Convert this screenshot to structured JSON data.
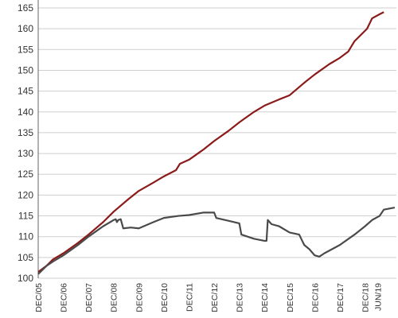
{
  "chart_data": {
    "type": "line",
    "title": "",
    "xlabel": "",
    "ylabel": "",
    "ylim": [
      100,
      165
    ],
    "grid": true,
    "legend": "none",
    "y_ticks": [
      "100",
      "105",
      "110",
      "115",
      "120",
      "125",
      "130",
      "135",
      "140",
      "145",
      "150",
      "155",
      "160",
      "165"
    ],
    "x_ticks": [
      {
        "label": "DEC/05",
        "x": 2005.917
      },
      {
        "label": "DEC/06",
        "x": 2006.917
      },
      {
        "label": "DEC/07",
        "x": 2007.917
      },
      {
        "label": "DEC/08",
        "x": 2008.917
      },
      {
        "label": "DEC/09",
        "x": 2009.917
      },
      {
        "label": "DEC/10",
        "x": 2010.917
      },
      {
        "label": "DEC/11",
        "x": 2011.917
      },
      {
        "label": "DEC/12",
        "x": 2012.917
      },
      {
        "label": "DEC/13",
        "x": 2013.917
      },
      {
        "label": "DEC/14",
        "x": 2014.917
      },
      {
        "label": "DEC/15",
        "x": 2015.917
      },
      {
        "label": "DEC/16",
        "x": 2016.917
      },
      {
        "label": "DEC/17",
        "x": 2017.917
      },
      {
        "label": "DEC/18",
        "x": 2018.917
      },
      {
        "label": "JUN/19",
        "x": 2019.417
      }
    ],
    "xlim": [
      2005.917,
      2020.167
    ],
    "series": [
      {
        "color": "#8b1a1a",
        "points": [
          [
            2005.917,
            101.5
          ],
          [
            2006.25,
            103.0
          ],
          [
            2006.5,
            104.5
          ],
          [
            2006.917,
            106.0
          ],
          [
            2007.5,
            108.5
          ],
          [
            2007.917,
            110.5
          ],
          [
            2008.5,
            113.5
          ],
          [
            2008.917,
            116.0
          ],
          [
            2009.5,
            119.0
          ],
          [
            2009.917,
            121.0
          ],
          [
            2010.5,
            123.0
          ],
          [
            2010.917,
            124.5
          ],
          [
            2011.4,
            126.0
          ],
          [
            2011.55,
            127.5
          ],
          [
            2011.917,
            128.5
          ],
          [
            2012.5,
            131.0
          ],
          [
            2012.917,
            133.0
          ],
          [
            2013.5,
            135.5
          ],
          [
            2013.917,
            137.5
          ],
          [
            2014.5,
            140.0
          ],
          [
            2014.917,
            141.5
          ],
          [
            2015.5,
            143.0
          ],
          [
            2015.917,
            144.0
          ],
          [
            2016.5,
            147.0
          ],
          [
            2016.917,
            149.0
          ],
          [
            2017.5,
            151.5
          ],
          [
            2017.917,
            153.0
          ],
          [
            2018.25,
            154.5
          ],
          [
            2018.5,
            157.0
          ],
          [
            2018.917,
            159.5
          ],
          [
            2019.0,
            160.0
          ],
          [
            2019.2,
            162.5
          ],
          [
            2019.5,
            163.5
          ],
          [
            2019.667,
            164.0
          ]
        ]
      },
      {
        "color": "#4a4a4a",
        "points": [
          [
            2005.917,
            101.0
          ],
          [
            2006.25,
            103.0
          ],
          [
            2006.5,
            104.0
          ],
          [
            2006.917,
            105.5
          ],
          [
            2007.5,
            108.0
          ],
          [
            2007.917,
            110.0
          ],
          [
            2008.5,
            112.5
          ],
          [
            2008.917,
            114.0
          ],
          [
            2009.0,
            114.2
          ],
          [
            2009.05,
            113.5
          ],
          [
            2009.1,
            114.0
          ],
          [
            2009.2,
            114.2
          ],
          [
            2009.3,
            112.0
          ],
          [
            2009.6,
            112.2
          ],
          [
            2009.917,
            112.0
          ],
          [
            2010.5,
            113.5
          ],
          [
            2010.917,
            114.5
          ],
          [
            2011.5,
            115.0
          ],
          [
            2011.917,
            115.2
          ],
          [
            2012.5,
            115.8
          ],
          [
            2012.917,
            115.8
          ],
          [
            2013.0,
            114.5
          ],
          [
            2013.5,
            113.8
          ],
          [
            2013.917,
            113.2
          ],
          [
            2014.0,
            110.5
          ],
          [
            2014.5,
            109.5
          ],
          [
            2014.917,
            109.0
          ],
          [
            2015.0,
            109.0
          ],
          [
            2015.05,
            114.0
          ],
          [
            2015.2,
            113.0
          ],
          [
            2015.5,
            112.5
          ],
          [
            2015.917,
            111.0
          ],
          [
            2016.3,
            110.5
          ],
          [
            2016.5,
            108.0
          ],
          [
            2016.7,
            107.0
          ],
          [
            2016.917,
            105.5
          ],
          [
            2017.1,
            105.2
          ],
          [
            2017.3,
            106.0
          ],
          [
            2017.917,
            108.0
          ],
          [
            2018.5,
            110.5
          ],
          [
            2018.917,
            112.5
          ],
          [
            2019.2,
            114.0
          ],
          [
            2019.5,
            115.0
          ],
          [
            2019.667,
            116.5
          ],
          [
            2020.1,
            117.0
          ]
        ]
      }
    ]
  }
}
